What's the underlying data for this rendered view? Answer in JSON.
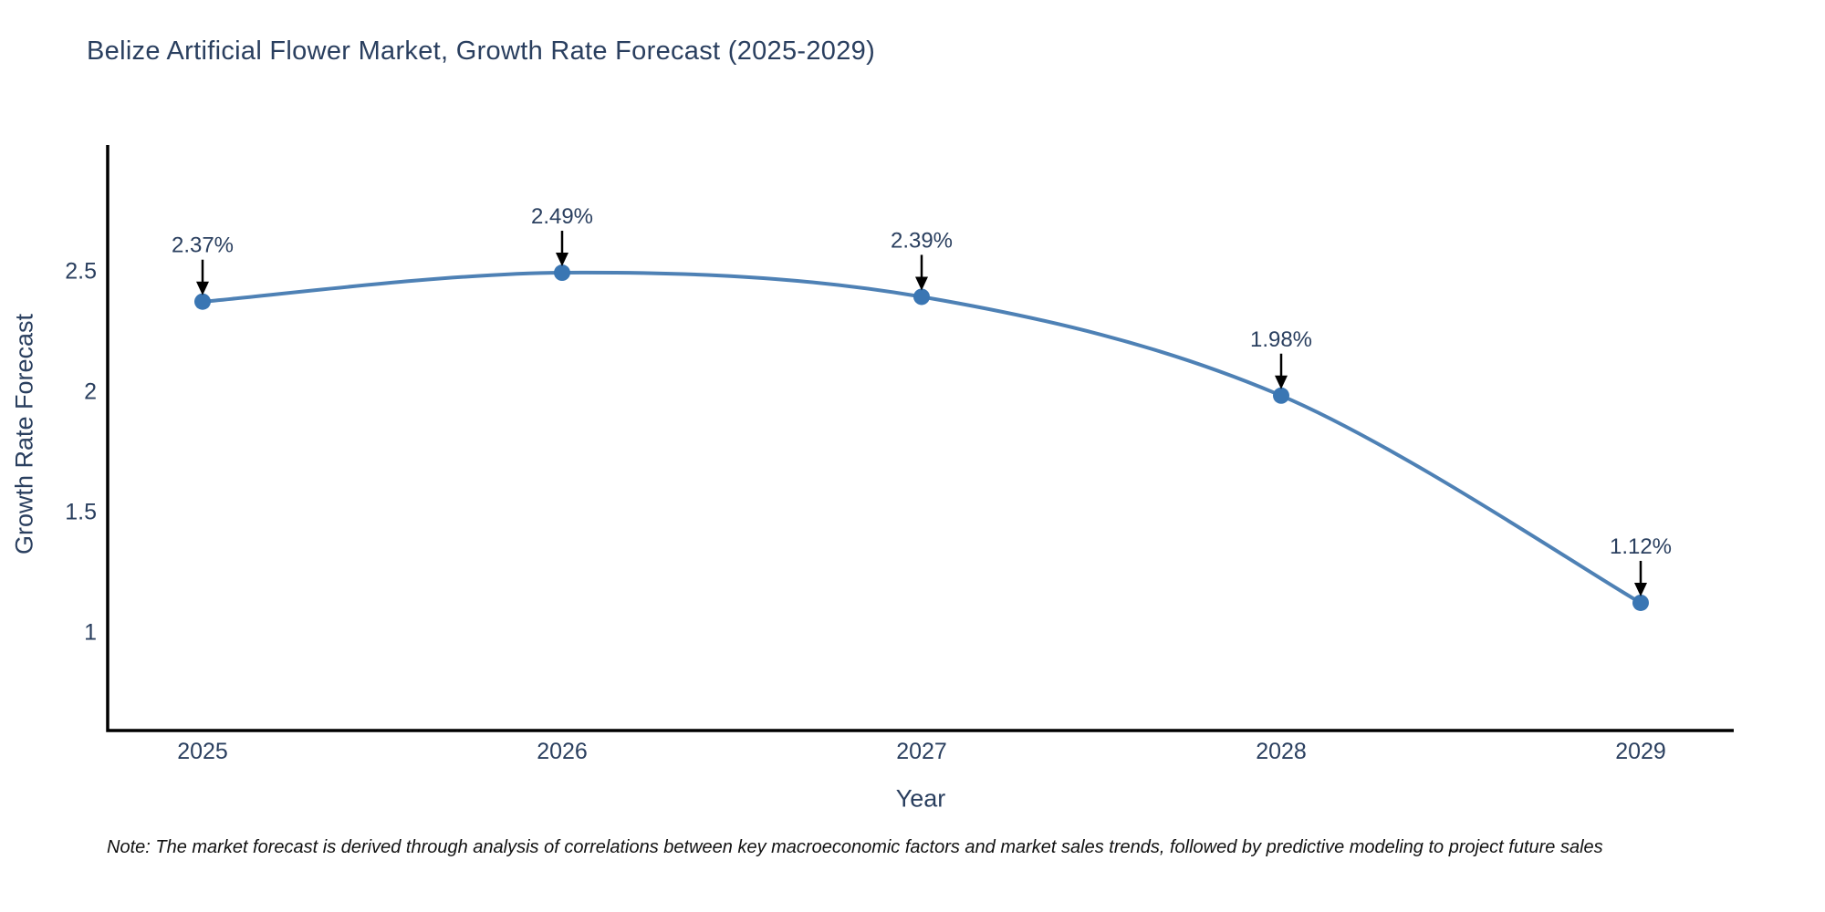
{
  "chart": {
    "title": "Belize Artificial Flower Market, Growth Rate Forecast (2025-2029)",
    "xlabel": "Year",
    "ylabel": "Growth Rate Forecast",
    "note": "Note: The market forecast is derived through analysis of correlations between key macroeconomic factors and market sales trends, followed by predictive modeling to project future sales"
  },
  "chart_data": {
    "type": "line",
    "x": [
      "2025",
      "2026",
      "2027",
      "2028",
      "2029"
    ],
    "values": [
      2.37,
      2.49,
      2.39,
      1.98,
      1.12
    ],
    "point_labels": [
      "2.37%",
      "2.49%",
      "2.39%",
      "1.98%",
      "1.12%"
    ],
    "title": "Belize Artificial Flower Market, Growth Rate Forecast (2025-2029)",
    "xlabel": "Year",
    "ylabel": "Growth Rate Forecast",
    "yticks": [
      "1",
      "1.5",
      "2",
      "2.5"
    ],
    "ytick_values": [
      1,
      1.5,
      2,
      2.5
    ],
    "ylim": [
      0.59,
      3.02
    ],
    "grid": false,
    "legend": false,
    "line_color": "#4e81b5",
    "marker_color": "#3a76b3",
    "text_color": "#2a3f5f",
    "axis_color": "#000000",
    "annotation_arrow_color": "#000000"
  }
}
